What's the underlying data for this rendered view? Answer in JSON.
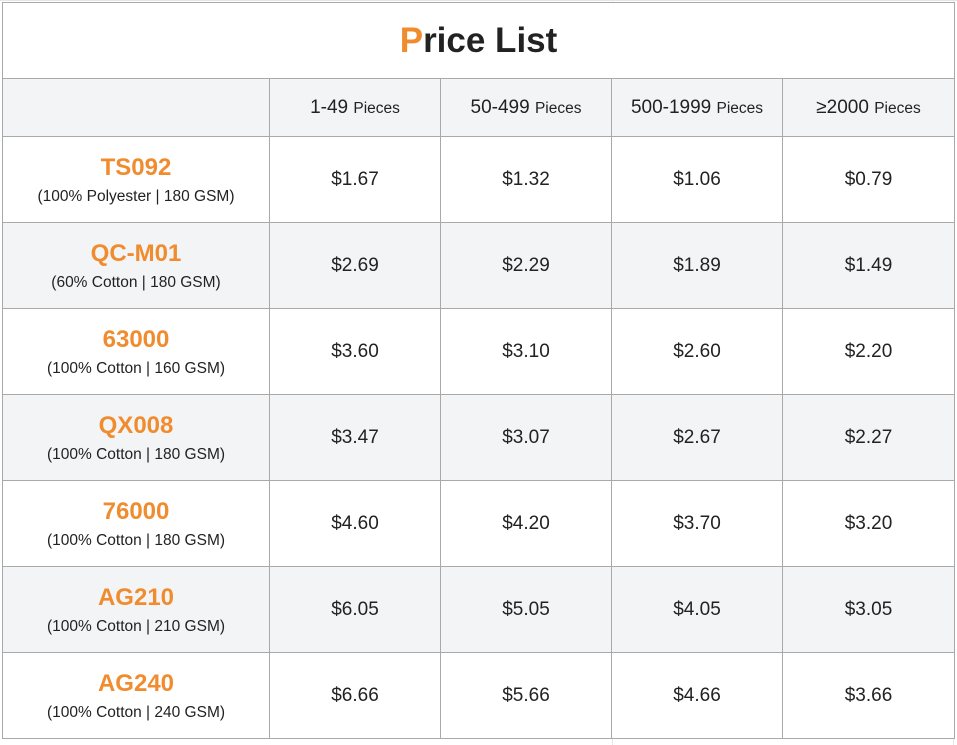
{
  "title": {
    "first_letter": "P",
    "rest": "rice List"
  },
  "header": {
    "columns": [
      {
        "range": "1-49",
        "unit": "Pieces"
      },
      {
        "range": "50-499",
        "unit": "Pieces"
      },
      {
        "range": "500-1999",
        "unit": "Pieces"
      },
      {
        "range": "≥2000",
        "unit": "Pieces"
      }
    ]
  },
  "rows": [
    {
      "name": "TS092",
      "spec": "(100% Polyester | 180 GSM)",
      "prices": [
        "$1.67",
        "$1.32",
        "$1.06",
        "$0.79"
      ]
    },
    {
      "name": "QC-M01",
      "spec": "(60% Cotton | 180 GSM)",
      "prices": [
        "$2.69",
        "$2.29",
        "$1.89",
        "$1.49"
      ]
    },
    {
      "name": "63000",
      "spec": "(100% Cotton | 160 GSM)",
      "prices": [
        "$3.60",
        "$3.10",
        "$2.60",
        "$2.20"
      ]
    },
    {
      "name": "QX008",
      "spec": "(100% Cotton | 180 GSM)",
      "prices": [
        "$3.47",
        "$3.07",
        "$2.67",
        "$2.27"
      ]
    },
    {
      "name": "76000",
      "spec": "(100% Cotton | 180 GSM)",
      "prices": [
        "$4.60",
        "$4.20",
        "$3.70",
        "$3.20"
      ]
    },
    {
      "name": "AG210",
      "spec": "(100% Cotton | 210 GSM)",
      "prices": [
        "$6.05",
        "$5.05",
        "$4.05",
        "$3.05"
      ]
    },
    {
      "name": "AG240",
      "spec": "(100% Cotton | 240 GSM)",
      "prices": [
        "$6.66",
        "$5.66",
        "$4.66",
        "$3.66"
      ]
    }
  ],
  "colors": {
    "accent": "#f08c2e",
    "header_bg": "#f3f4f6",
    "border": "#a9a9a9"
  }
}
